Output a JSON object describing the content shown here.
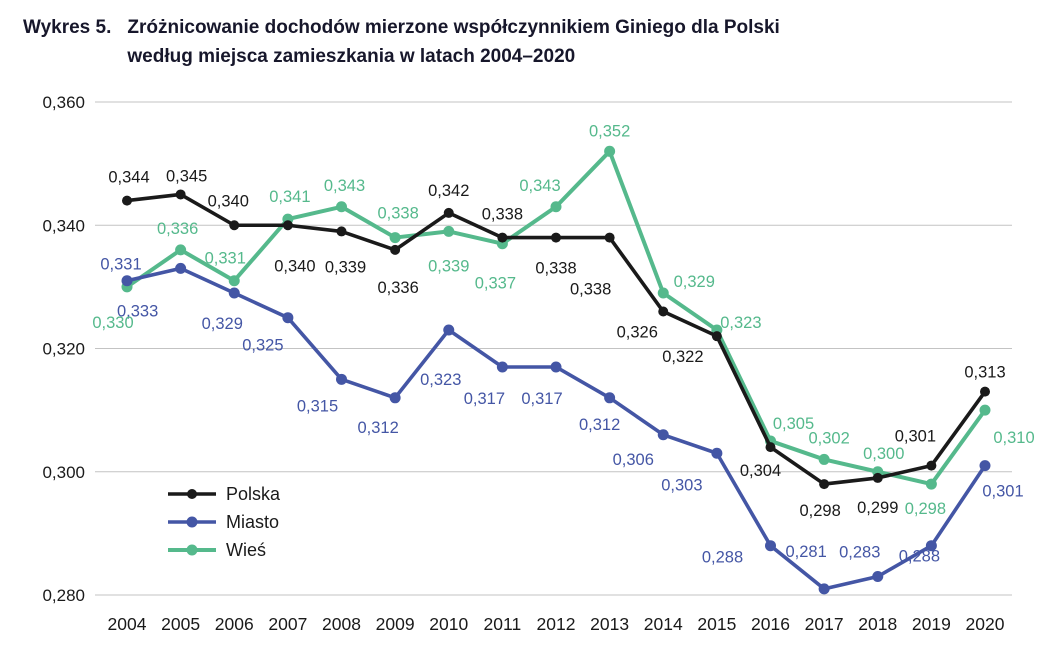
{
  "title": {
    "label": "Wykres 5.",
    "line1": "Zróżnicowanie dochodów mierzone współczynnikiem Giniego dla Polski",
    "line2": "według miejsca zamieszkania w latach 2004–2020"
  },
  "chart_data": {
    "type": "line",
    "categories": [
      "2004",
      "2005",
      "2006",
      "2007",
      "2008",
      "2009",
      "2010",
      "2011",
      "2012",
      "2013",
      "2014",
      "2015",
      "2016",
      "2017",
      "2018",
      "2019",
      "2020"
    ],
    "series": [
      {
        "name": "Polska",
        "color": "#1a1a1a",
        "values": [
          0.344,
          0.345,
          0.34,
          0.34,
          0.339,
          0.336,
          0.342,
          0.338,
          0.338,
          0.338,
          0.326,
          0.322,
          0.304,
          0.298,
          0.299,
          0.301,
          0.313
        ]
      },
      {
        "name": "Miasto",
        "color": "#4456a5",
        "values": [
          0.331,
          0.333,
          0.329,
          0.325,
          0.315,
          0.312,
          0.323,
          0.317,
          0.317,
          0.312,
          0.306,
          0.303,
          0.288,
          0.281,
          0.283,
          0.288,
          0.301
        ]
      },
      {
        "name": "Wieś",
        "color": "#55b98c",
        "values": [
          0.33,
          0.336,
          0.331,
          0.341,
          0.343,
          0.338,
          0.339,
          0.337,
          0.343,
          0.352,
          0.329,
          0.323,
          0.305,
          0.302,
          0.3,
          0.298,
          0.31
        ]
      }
    ],
    "ylim": [
      0.28,
      0.36
    ],
    "ytick_step": 0.02,
    "grid": true,
    "grid_color": "#c3c3c3",
    "legend_position": "inside-left-bottom",
    "decimal_separator": ",",
    "value_labels": true
  }
}
